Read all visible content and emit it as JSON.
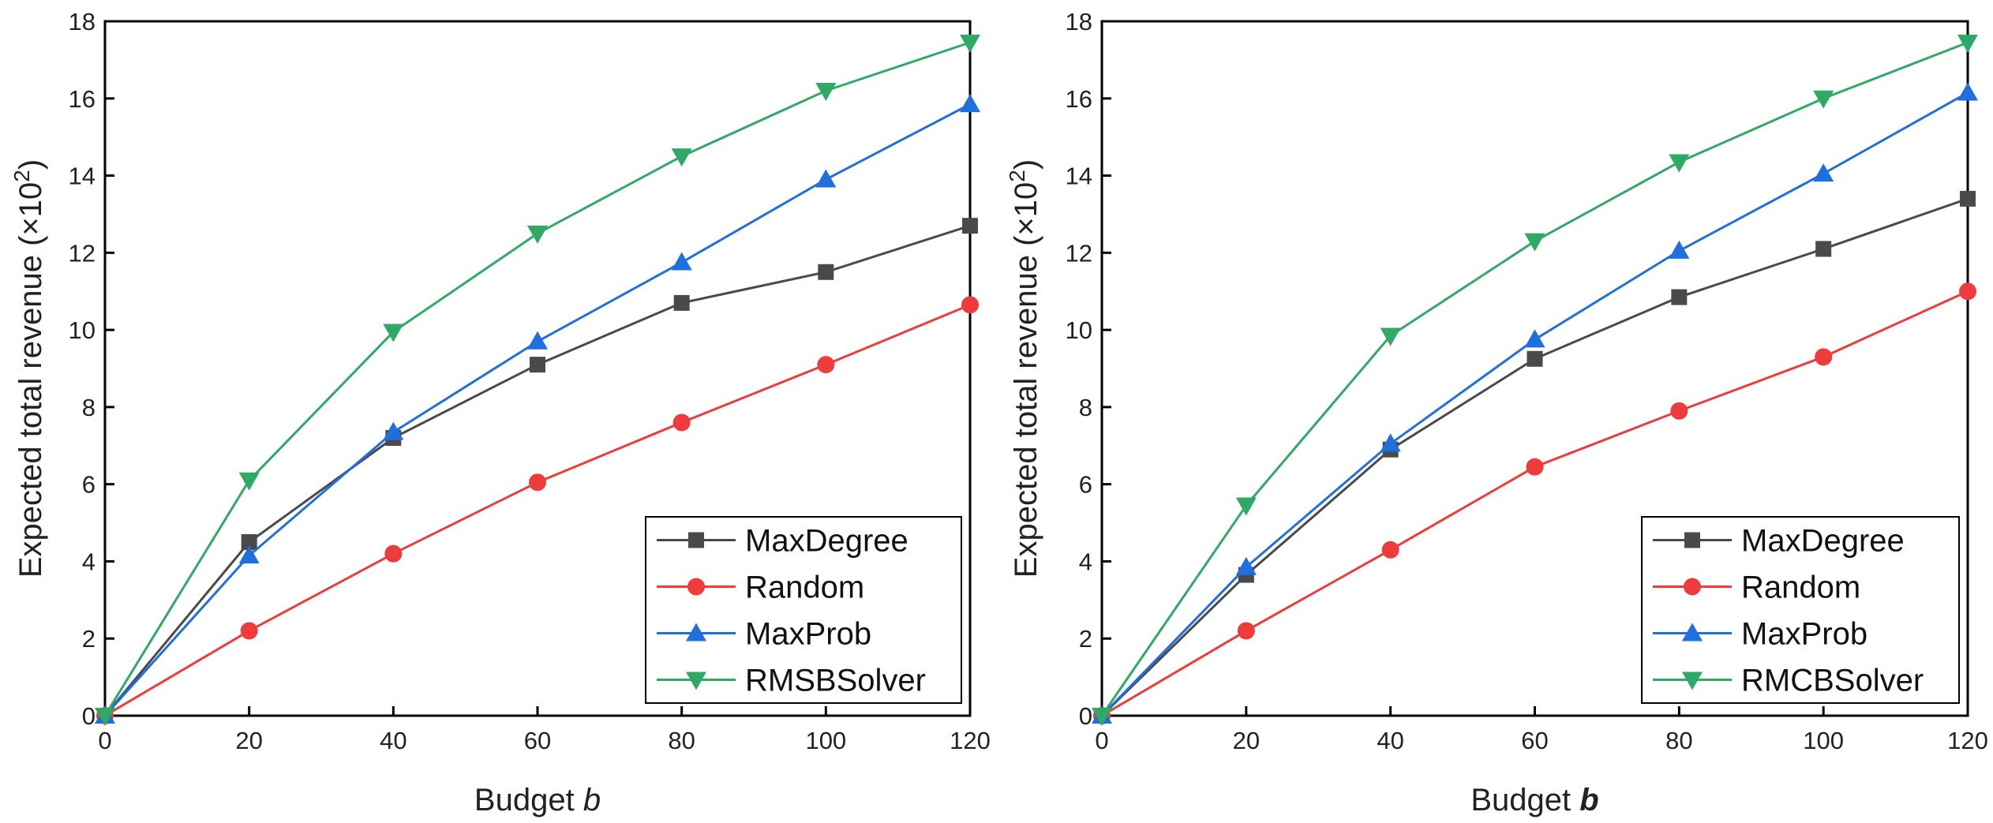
{
  "chart_data": [
    {
      "type": "line",
      "x": [
        0,
        20,
        40,
        60,
        80,
        100,
        120
      ],
      "xlabel_text": "Budget ",
      "xlabel_var": "b",
      "xlabel_var_style": "italic",
      "ylabel_text": "Expected total revenue (×10",
      "ylabel_exp": "2",
      "ylabel_close": ")",
      "xlim": [
        0,
        120
      ],
      "ylim": [
        0,
        18
      ],
      "xticks": [
        0,
        20,
        40,
        60,
        80,
        100,
        120
      ],
      "yticks": [
        0,
        2,
        4,
        6,
        8,
        10,
        12,
        14,
        16,
        18
      ],
      "grid": false,
      "legend_position": "bottom-right",
      "series": [
        {
          "name": "MaxDegree",
          "color": "#4a4a4a",
          "marker": "square",
          "values": [
            0,
            4.5,
            7.2,
            9.1,
            10.7,
            11.5,
            12.7
          ]
        },
        {
          "name": "Random",
          "color": "#ee3b3b",
          "marker": "circle",
          "values": [
            0,
            2.2,
            4.2,
            6.05,
            7.6,
            9.1,
            10.65
          ]
        },
        {
          "name": "MaxProb",
          "color": "#1f6fde",
          "marker": "triangle-up",
          "values": [
            0,
            4.15,
            7.35,
            9.7,
            11.75,
            13.9,
            15.85
          ]
        },
        {
          "name": "RMSBSolver",
          "color": "#2faa66",
          "marker": "triangle-down",
          "values": [
            0,
            6.1,
            9.95,
            12.5,
            14.5,
            16.2,
            17.45
          ]
        }
      ]
    },
    {
      "type": "line",
      "x": [
        0,
        20,
        40,
        60,
        80,
        100,
        120
      ],
      "xlabel_text": "Budget ",
      "xlabel_var": "b",
      "xlabel_var_style": "bold-italic",
      "ylabel_text": "Expected total revenue (×10",
      "ylabel_exp": "2",
      "ylabel_close": ")",
      "xlim": [
        0,
        120
      ],
      "ylim": [
        0,
        18
      ],
      "xticks": [
        0,
        20,
        40,
        60,
        80,
        100,
        120
      ],
      "yticks": [
        0,
        2,
        4,
        6,
        8,
        10,
        12,
        14,
        16,
        18
      ],
      "grid": false,
      "legend_position": "bottom-right",
      "series": [
        {
          "name": "MaxDegree",
          "color": "#4a4a4a",
          "marker": "square",
          "values": [
            0,
            3.65,
            6.9,
            9.25,
            10.85,
            12.1,
            13.4
          ]
        },
        {
          "name": "Random",
          "color": "#ee3b3b",
          "marker": "circle",
          "values": [
            0,
            2.2,
            4.3,
            6.45,
            7.9,
            9.3,
            11.0
          ]
        },
        {
          "name": "MaxProb",
          "color": "#1f6fde",
          "marker": "triangle-up",
          "values": [
            0,
            3.85,
            7.05,
            9.75,
            12.05,
            14.05,
            16.15
          ]
        },
        {
          "name": "RMCBSolver",
          "color": "#2faa66",
          "marker": "triangle-down",
          "values": [
            0,
            5.45,
            9.85,
            12.3,
            14.35,
            16.0,
            17.45
          ]
        }
      ]
    }
  ]
}
